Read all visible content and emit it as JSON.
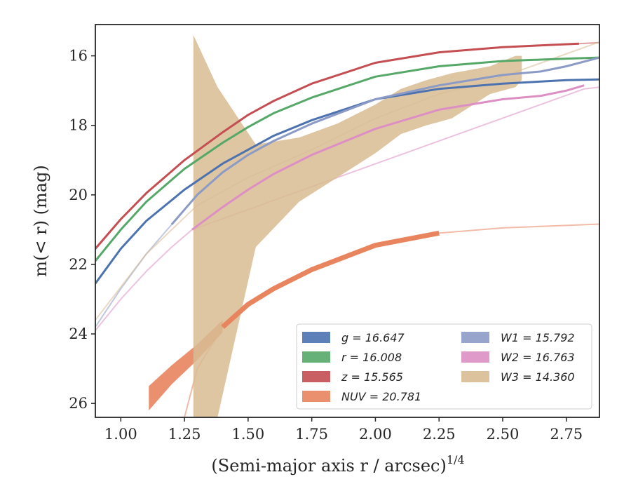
{
  "chart_data": {
    "type": "line",
    "xlabel": "(Semi-major axis r / arcsec)",
    "xlabel_sup": "1/4",
    "ylabel": "m(< r) (mag)",
    "xlim": [
      0.9,
      2.88
    ],
    "ylim": [
      26.4,
      15.1
    ],
    "y_inverted": true,
    "xticks": [
      "1.00",
      "1.25",
      "1.50",
      "1.75",
      "2.00",
      "2.25",
      "2.50",
      "2.75"
    ],
    "xtick_values": [
      1.0,
      1.25,
      1.5,
      1.75,
      2.0,
      2.25,
      2.5,
      2.75
    ],
    "yticks": [
      "16",
      "18",
      "20",
      "22",
      "24",
      "26"
    ],
    "ytick_values": [
      16,
      18,
      20,
      22,
      24,
      26
    ],
    "grid": false,
    "legend_position": "bottom-right",
    "series": [
      {
        "name": "g = 16.647",
        "legend_var": "g",
        "legend_val": "16.647",
        "color": "#4c72b0",
        "width": 3,
        "curve": [
          [
            0.9,
            22.55
          ],
          [
            1.0,
            21.55
          ],
          [
            1.1,
            20.75
          ],
          [
            1.25,
            19.85
          ],
          [
            1.4,
            19.1
          ],
          [
            1.5,
            18.7
          ],
          [
            1.6,
            18.3
          ],
          [
            1.75,
            17.85
          ],
          [
            2.0,
            17.25
          ],
          [
            2.25,
            16.95
          ],
          [
            2.5,
            16.8
          ],
          [
            2.75,
            16.7
          ],
          [
            2.88,
            16.68
          ]
        ],
        "ext": []
      },
      {
        "name": "r = 16.008",
        "legend_var": "r",
        "legend_val": "16.008",
        "color": "#55a868",
        "width": 3,
        "curve": [
          [
            0.9,
            21.9
          ],
          [
            1.0,
            21.0
          ],
          [
            1.1,
            20.2
          ],
          [
            1.25,
            19.25
          ],
          [
            1.4,
            18.5
          ],
          [
            1.5,
            18.05
          ],
          [
            1.6,
            17.65
          ],
          [
            1.75,
            17.2
          ],
          [
            2.0,
            16.6
          ],
          [
            2.25,
            16.3
          ],
          [
            2.5,
            16.15
          ],
          [
            2.75,
            16.08
          ],
          [
            2.88,
            16.05
          ]
        ],
        "ext": []
      },
      {
        "name": "z = 15.565",
        "legend_var": "z",
        "legend_val": "15.565",
        "color": "#c44e52",
        "width": 3,
        "curve": [
          [
            0.9,
            21.55
          ],
          [
            1.0,
            20.7
          ],
          [
            1.1,
            19.95
          ],
          [
            1.25,
            19.0
          ],
          [
            1.4,
            18.2
          ],
          [
            1.5,
            17.7
          ],
          [
            1.6,
            17.3
          ],
          [
            1.75,
            16.8
          ],
          [
            2.0,
            16.2
          ],
          [
            2.25,
            15.9
          ],
          [
            2.5,
            15.75
          ],
          [
            2.8,
            15.65
          ]
        ],
        "ext": [
          [
            2.8,
            15.65
          ],
          [
            2.88,
            15.62
          ]
        ]
      },
      {
        "name": "NUV = 20.781",
        "legend_var": "NUV",
        "legend_val": "20.781",
        "color": "#e8845e",
        "width": 7,
        "band": [
          [
            1.11,
            25.5,
            26.2
          ],
          [
            1.2,
            24.9,
            25.45
          ],
          [
            1.3,
            24.3,
            24.75
          ],
          [
            1.4,
            23.6,
            23.95
          ]
        ],
        "curve": [
          [
            1.4,
            23.8
          ],
          [
            1.5,
            23.15
          ],
          [
            1.6,
            22.7
          ],
          [
            1.75,
            22.15
          ],
          [
            2.0,
            21.45
          ],
          [
            2.25,
            21.1
          ]
        ],
        "ext": [
          [
            1.25,
            26.4
          ],
          [
            1.3,
            25.0
          ],
          [
            1.4,
            23.8
          ],
          [
            1.5,
            23.15
          ],
          [
            1.75,
            22.15
          ],
          [
            2.0,
            21.45
          ],
          [
            2.25,
            21.1
          ],
          [
            2.5,
            20.95
          ],
          [
            2.88,
            20.84
          ]
        ]
      },
      {
        "name": "W1 = 15.792",
        "legend_var": "W1",
        "legend_val": "15.792",
        "color": "#8c9ac6",
        "width": 3,
        "curve": [
          [
            1.2,
            20.85
          ],
          [
            1.3,
            20.0
          ],
          [
            1.4,
            19.35
          ],
          [
            1.5,
            18.85
          ],
          [
            1.6,
            18.45
          ],
          [
            1.75,
            17.95
          ],
          [
            2.0,
            17.25
          ],
          [
            2.25,
            16.85
          ],
          [
            2.5,
            16.55
          ],
          [
            2.65,
            16.45
          ],
          [
            2.75,
            16.3
          ],
          [
            2.88,
            16.05
          ]
        ],
        "ext": [
          [
            0.9,
            23.8
          ],
          [
            1.0,
            22.7
          ],
          [
            1.1,
            21.7
          ],
          [
            1.2,
            20.85
          ]
        ]
      },
      {
        "name": "W2 = 16.763",
        "legend_var": "W2",
        "legend_val": "16.763",
        "color": "#dd8fc4",
        "width": 3,
        "curve": [
          [
            1.28,
            21.0
          ],
          [
            1.4,
            20.35
          ],
          [
            1.5,
            19.85
          ],
          [
            1.6,
            19.4
          ],
          [
            1.75,
            18.85
          ],
          [
            2.0,
            18.1
          ],
          [
            2.25,
            17.55
          ],
          [
            2.5,
            17.25
          ],
          [
            2.65,
            17.15
          ],
          [
            2.75,
            17.0
          ],
          [
            2.82,
            16.85
          ]
        ],
        "ext": [
          [
            0.9,
            23.9
          ],
          [
            1.0,
            23.0
          ],
          [
            1.1,
            22.2
          ],
          [
            1.2,
            21.5
          ],
          [
            1.28,
            21.0
          ],
          [
            2.82,
            16.95
          ],
          [
            2.88,
            16.9
          ]
        ]
      },
      {
        "name": "W3 = 14.360",
        "legend_var": "W3",
        "legend_val": "14.360",
        "color": "#d8bc93",
        "width": 0,
        "band": [
          [
            1.285,
            15.4,
            26.4
          ],
          [
            1.38,
            16.9,
            26.4
          ],
          [
            1.53,
            18.55,
            21.5
          ],
          [
            1.7,
            18.35,
            20.2
          ],
          [
            1.85,
            17.95,
            19.5
          ],
          [
            2.0,
            17.4,
            18.8
          ],
          [
            2.1,
            16.95,
            18.25
          ],
          [
            2.2,
            16.7,
            18.0
          ],
          [
            2.3,
            16.5,
            17.8
          ],
          [
            2.45,
            16.3,
            17.1
          ],
          [
            2.55,
            16.0,
            16.9
          ],
          [
            2.575,
            16.0,
            16.7
          ]
        ],
        "curve": [],
        "ext": [
          [
            0.9,
            23.6
          ],
          [
            1.1,
            21.7
          ],
          [
            1.3,
            20.3
          ],
          [
            1.5,
            19.5
          ],
          [
            1.75,
            18.7
          ],
          [
            2.0,
            17.8
          ],
          [
            2.25,
            17.1
          ],
          [
            2.5,
            16.6
          ],
          [
            2.88,
            15.6
          ]
        ]
      }
    ]
  }
}
